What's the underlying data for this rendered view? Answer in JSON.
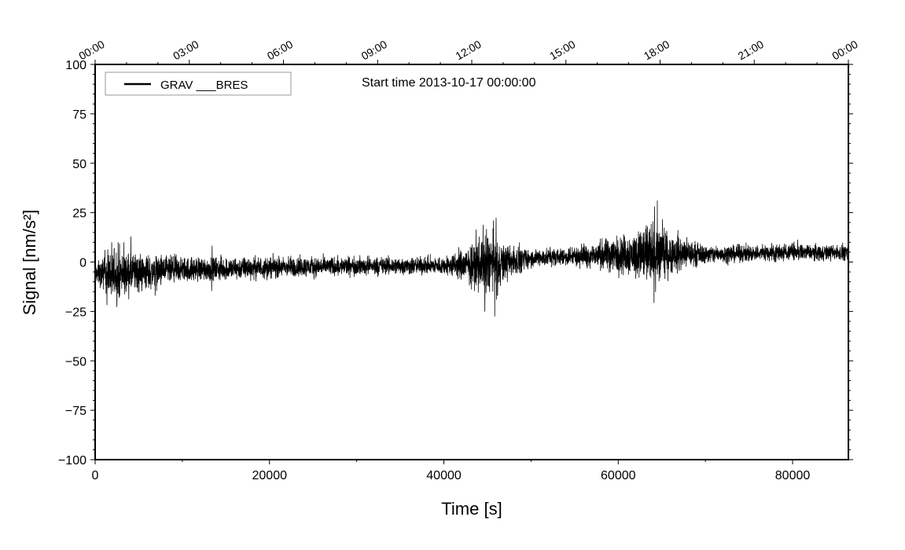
{
  "chart_data": {
    "type": "line",
    "title": "Start time 2013-10-17 00:00:00",
    "xlabel": "Time [s]",
    "ylabel": "Signal [nm/s²]",
    "xlim": [
      0,
      86400
    ],
    "ylim": [
      -100,
      100
    ],
    "x_ticks": [
      0,
      20000,
      40000,
      60000,
      80000
    ],
    "x_tick_labels": [
      "0",
      "20000",
      "40000",
      "60000",
      "80000"
    ],
    "y_ticks": [
      -100,
      -75,
      -50,
      -25,
      0,
      25,
      50,
      75,
      100
    ],
    "y_tick_labels": [
      "−100",
      "−75",
      "−50",
      "−25",
      "0",
      "25",
      "50",
      "75",
      "100"
    ],
    "top_axis_ticks_s": [
      0,
      10800,
      21600,
      32400,
      43200,
      54000,
      64800,
      75600,
      86400
    ],
    "top_axis_labels": [
      "00:00",
      "03:00",
      "06:00",
      "09:00",
      "12:00",
      "15:00",
      "18:00",
      "21:00",
      "00:00"
    ],
    "grid": false,
    "legend": {
      "placement": "top-left",
      "entries": [
        "GRAV ___BRES"
      ]
    },
    "series": [
      {
        "name": "GRAV ___BRES",
        "color": "#000000",
        "description_points": {
          "x": [
            0,
            2200,
            10000,
            20000,
            30000,
            40000,
            45000,
            50000,
            55000,
            64000,
            70000,
            80000,
            86400
          ],
          "baseline": [
            -6,
            -6,
            -4,
            -3,
            -2,
            -2,
            -1,
            2,
            3,
            4,
            4,
            5,
            5
          ],
          "envelope_max": [
            8,
            23,
            13,
            12,
            10,
            10,
            31,
            13,
            15,
            39,
            15,
            16,
            14
          ],
          "envelope_min": [
            -18,
            -38,
            -20,
            -16,
            -14,
            -13,
            -36,
            -10,
            -9,
            -30,
            -8,
            -6,
            -6
          ]
        }
      }
    ]
  }
}
